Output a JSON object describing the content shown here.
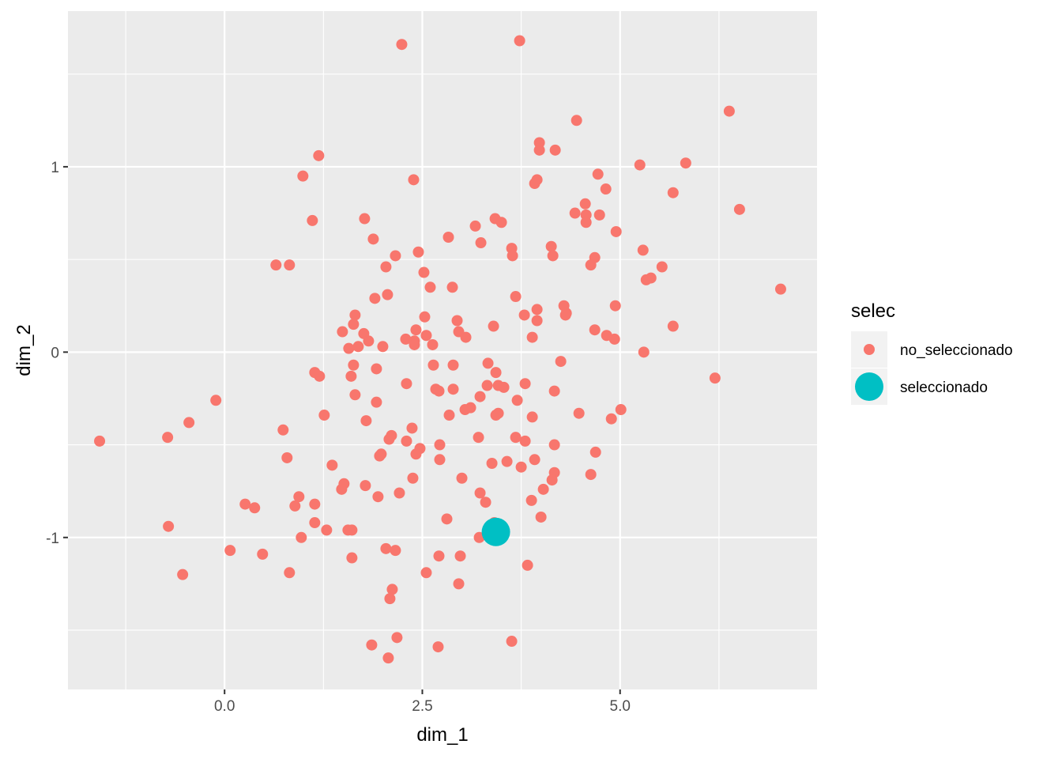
{
  "chart_data": {
    "type": "scatter",
    "title": "",
    "xlabel": "dim_1",
    "ylabel": "dim_2",
    "xlim": [
      -1.98,
      7.49
    ],
    "ylim": [
      -1.82,
      1.84
    ],
    "x_ticks": [
      0.0,
      2.5,
      5.0
    ],
    "x_tick_labels": [
      "0.0",
      "2.5",
      "5.0"
    ],
    "y_ticks": [
      -1,
      0,
      1
    ],
    "y_tick_labels": [
      "-1",
      "0",
      "1"
    ],
    "grid": true,
    "panel_background": "#EBEBEB",
    "legend": {
      "title": "selec",
      "position": "right",
      "entries": [
        {
          "label": "no_seleccionado",
          "color": "#F8766D",
          "size": "small"
        },
        {
          "label": "seleccionado",
          "color": "#00BFC4",
          "size": "large"
        }
      ]
    },
    "series": [
      {
        "name": "no_seleccionado",
        "color": "#F8766D",
        "points": [
          [
            2.24,
            1.66
          ],
          [
            3.73,
            1.68
          ],
          [
            6.38,
            1.3
          ],
          [
            4.45,
            1.25
          ],
          [
            1.19,
            1.06
          ],
          [
            0.99,
            0.95
          ],
          [
            2.39,
            0.93
          ],
          [
            3.98,
            1.13
          ],
          [
            3.98,
            1.09
          ],
          [
            4.18,
            1.09
          ],
          [
            5.25,
            1.01
          ],
          [
            5.83,
            1.02
          ],
          [
            4.72,
            0.96
          ],
          [
            3.95,
            0.93
          ],
          [
            3.92,
            0.91
          ],
          [
            4.82,
            0.88
          ],
          [
            5.67,
            0.86
          ],
          [
            4.56,
            0.8
          ],
          [
            4.43,
            0.75
          ],
          [
            4.57,
            0.74
          ],
          [
            4.74,
            0.74
          ],
          [
            4.57,
            0.7
          ],
          [
            6.51,
            0.77
          ],
          [
            1.11,
            0.71
          ],
          [
            1.77,
            0.72
          ],
          [
            3.42,
            0.72
          ],
          [
            3.5,
            0.7
          ],
          [
            3.17,
            0.68
          ],
          [
            4.95,
            0.65
          ],
          [
            2.83,
            0.62
          ],
          [
            1.88,
            0.61
          ],
          [
            3.24,
            0.59
          ],
          [
            3.63,
            0.56
          ],
          [
            4.13,
            0.57
          ],
          [
            5.29,
            0.55
          ],
          [
            2.45,
            0.54
          ],
          [
            2.16,
            0.52
          ],
          [
            3.64,
            0.52
          ],
          [
            4.15,
            0.52
          ],
          [
            4.68,
            0.51
          ],
          [
            4.63,
            0.47
          ],
          [
            0.65,
            0.47
          ],
          [
            0.82,
            0.47
          ],
          [
            2.04,
            0.46
          ],
          [
            5.53,
            0.46
          ],
          [
            2.52,
            0.43
          ],
          [
            5.39,
            0.4
          ],
          [
            5.33,
            0.39
          ],
          [
            2.6,
            0.35
          ],
          [
            2.88,
            0.35
          ],
          [
            7.03,
            0.34
          ],
          [
            2.06,
            0.31
          ],
          [
            3.68,
            0.3
          ],
          [
            1.9,
            0.29
          ],
          [
            4.29,
            0.25
          ],
          [
            3.95,
            0.23
          ],
          [
            4.94,
            0.25
          ],
          [
            4.32,
            0.21
          ],
          [
            4.31,
            0.2
          ],
          [
            3.79,
            0.2
          ],
          [
            1.65,
            0.2
          ],
          [
            2.53,
            0.19
          ],
          [
            3.95,
            0.17
          ],
          [
            2.94,
            0.17
          ],
          [
            1.63,
            0.15
          ],
          [
            5.67,
            0.14
          ],
          [
            3.4,
            0.14
          ],
          [
            2.42,
            0.12
          ],
          [
            1.49,
            0.11
          ],
          [
            2.96,
            0.11
          ],
          [
            4.68,
            0.12
          ],
          [
            1.76,
            0.1
          ],
          [
            2.55,
            0.09
          ],
          [
            4.83,
            0.09
          ],
          [
            3.05,
            0.08
          ],
          [
            3.89,
            0.08
          ],
          [
            2.29,
            0.07
          ],
          [
            4.93,
            0.07
          ],
          [
            2.4,
            0.06
          ],
          [
            1.82,
            0.06
          ],
          [
            2.4,
            0.04
          ],
          [
            2.63,
            0.04
          ],
          [
            1.69,
            0.03
          ],
          [
            2.0,
            0.03
          ],
          [
            1.57,
            0.02
          ],
          [
            5.3,
            0.0
          ],
          [
            4.25,
            -0.05
          ],
          [
            3.33,
            -0.06
          ],
          [
            1.63,
            -0.07
          ],
          [
            2.64,
            -0.07
          ],
          [
            2.89,
            -0.07
          ],
          [
            1.92,
            -0.09
          ],
          [
            3.43,
            -0.11
          ],
          [
            1.14,
            -0.11
          ],
          [
            1.2,
            -0.13
          ],
          [
            1.6,
            -0.13
          ],
          [
            3.8,
            -0.17
          ],
          [
            2.3,
            -0.17
          ],
          [
            3.32,
            -0.18
          ],
          [
            3.46,
            -0.18
          ],
          [
            3.53,
            -0.19
          ],
          [
            2.67,
            -0.2
          ],
          [
            2.89,
            -0.2
          ],
          [
            4.17,
            -0.21
          ],
          [
            2.71,
            -0.21
          ],
          [
            1.65,
            -0.23
          ],
          [
            3.23,
            -0.24
          ],
          [
            3.7,
            -0.26
          ],
          [
            -0.11,
            -0.26
          ],
          [
            1.92,
            -0.27
          ],
          [
            3.11,
            -0.3
          ],
          [
            3.04,
            -0.31
          ],
          [
            5.01,
            -0.31
          ],
          [
            3.46,
            -0.33
          ],
          [
            3.43,
            -0.34
          ],
          [
            2.84,
            -0.34
          ],
          [
            1.26,
            -0.34
          ],
          [
            4.48,
            -0.33
          ],
          [
            3.89,
            -0.35
          ],
          [
            4.89,
            -0.36
          ],
          [
            1.79,
            -0.37
          ],
          [
            -0.45,
            -0.38
          ],
          [
            2.37,
            -0.41
          ],
          [
            0.74,
            -0.42
          ],
          [
            2.11,
            -0.45
          ],
          [
            3.68,
            -0.46
          ],
          [
            3.21,
            -0.46
          ],
          [
            -0.72,
            -0.46
          ],
          [
            2.08,
            -0.47
          ],
          [
            -1.58,
            -0.48
          ],
          [
            3.8,
            -0.48
          ],
          [
            2.3,
            -0.48
          ],
          [
            4.17,
            -0.5
          ],
          [
            2.72,
            -0.5
          ],
          [
            2.47,
            -0.52
          ],
          [
            1.98,
            -0.55
          ],
          [
            2.42,
            -0.55
          ],
          [
            1.96,
            -0.56
          ],
          [
            4.69,
            -0.54
          ],
          [
            0.79,
            -0.57
          ],
          [
            2.72,
            -0.58
          ],
          [
            3.92,
            -0.58
          ],
          [
            3.57,
            -0.59
          ],
          [
            3.38,
            -0.6
          ],
          [
            1.36,
            -0.61
          ],
          [
            3.75,
            -0.62
          ],
          [
            4.63,
            -0.66
          ],
          [
            4.17,
            -0.65
          ],
          [
            2.38,
            -0.68
          ],
          [
            3.0,
            -0.68
          ],
          [
            4.14,
            -0.69
          ],
          [
            1.51,
            -0.71
          ],
          [
            1.78,
            -0.72
          ],
          [
            1.48,
            -0.74
          ],
          [
            4.03,
            -0.74
          ],
          [
            2.21,
            -0.76
          ],
          [
            3.23,
            -0.76
          ],
          [
            0.94,
            -0.78
          ],
          [
            1.94,
            -0.78
          ],
          [
            3.88,
            -0.8
          ],
          [
            3.3,
            -0.81
          ],
          [
            0.26,
            -0.82
          ],
          [
            1.14,
            -0.82
          ],
          [
            0.89,
            -0.83
          ],
          [
            0.38,
            -0.84
          ],
          [
            4.0,
            -0.89
          ],
          [
            2.81,
            -0.9
          ],
          [
            3.41,
            -0.92
          ],
          [
            1.14,
            -0.92
          ],
          [
            -0.71,
            -0.94
          ],
          [
            1.56,
            -0.96
          ],
          [
            1.29,
            -0.96
          ],
          [
            1.61,
            -0.96
          ],
          [
            3.38,
            -0.97
          ],
          [
            3.22,
            -1.0
          ],
          [
            0.97,
            -1.0
          ],
          [
            2.04,
            -1.06
          ],
          [
            2.16,
            -1.07
          ],
          [
            0.07,
            -1.07
          ],
          [
            0.48,
            -1.09
          ],
          [
            2.71,
            -1.1
          ],
          [
            2.98,
            -1.1
          ],
          [
            1.61,
            -1.11
          ],
          [
            3.83,
            -1.15
          ],
          [
            0.82,
            -1.19
          ],
          [
            2.55,
            -1.19
          ],
          [
            -0.53,
            -1.2
          ],
          [
            2.96,
            -1.25
          ],
          [
            2.12,
            -1.28
          ],
          [
            2.09,
            -1.33
          ],
          [
            2.18,
            -1.54
          ],
          [
            1.86,
            -1.58
          ],
          [
            2.7,
            -1.59
          ],
          [
            3.63,
            -1.56
          ],
          [
            2.07,
            -1.65
          ],
          [
            6.2,
            -0.14
          ]
        ]
      },
      {
        "name": "seleccionado",
        "color": "#00BFC4",
        "points": [
          [
            3.43,
            -0.97
          ]
        ]
      }
    ]
  }
}
